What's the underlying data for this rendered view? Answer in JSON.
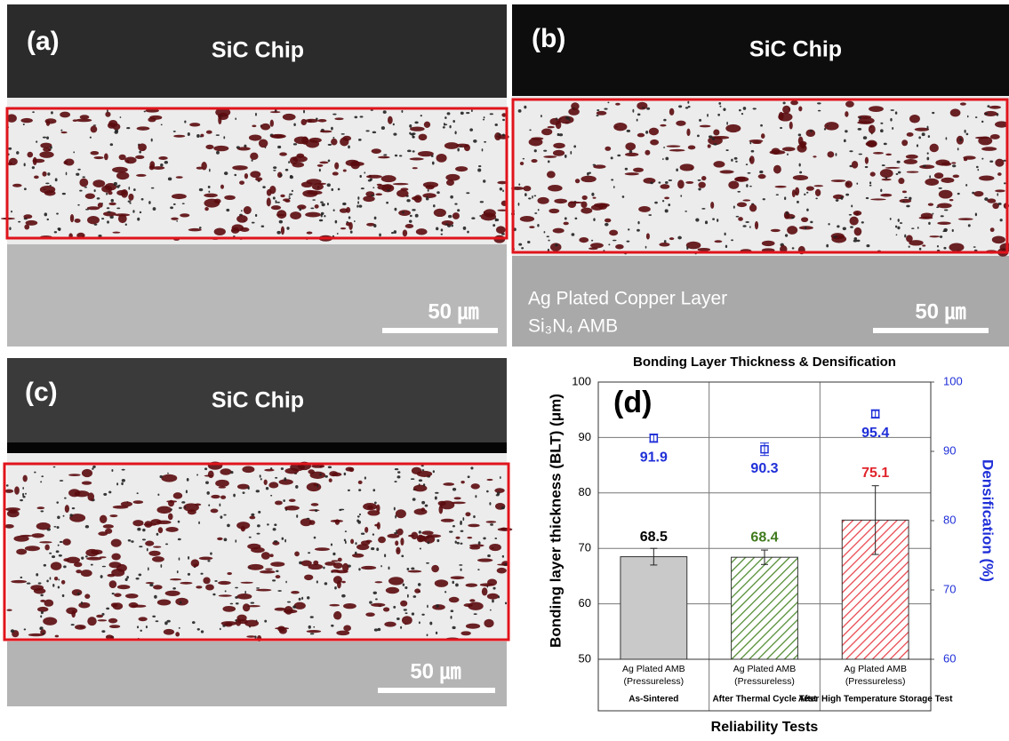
{
  "panels": [
    {
      "label": "(a)",
      "chip": "SiC Chip",
      "scale": "50 ㎛"
    },
    {
      "label": "(b)",
      "chip": "SiC Chip",
      "scale": "50 ㎛",
      "notes": [
        "Ag Plated Copper Layer",
        "Si₃N₄ AMB"
      ]
    },
    {
      "label": "(c)",
      "chip": "SiC Chip",
      "scale": "50 ㎛"
    }
  ],
  "chart_data": {
    "type": "bar",
    "title": "Bonding Layer Thickness & Densification",
    "panel_label": "(d)",
    "ylabel": "Bonding layer thickness (BLT) (μm)",
    "y2label": "Densification (%)",
    "xlabel": "Reliability Tests",
    "categories": [
      [
        "Ag Plated AMB",
        "(Pressureless)",
        "As-Sintered"
      ],
      [
        "Ag Plated AMB",
        "(Pressureless)",
        "After Thermal Cycle Test"
      ],
      [
        "Ag Plated AMB",
        "(Pressureless)",
        "After High Temperature Storage Test"
      ]
    ],
    "series": [
      {
        "values": [
          68.5,
          68.4,
          75.1
        ],
        "errors": [
          1.5,
          1.3,
          6.2
        ],
        "colors": [
          "#c9c9c9",
          "#4e8a2e",
          "#e8434a"
        ],
        "hatch": [
          false,
          true,
          true
        ],
        "label_colors": [
          "#000000",
          "#3f7a1c",
          "#e0242c"
        ]
      },
      {
        "values": [
          91.9,
          90.3,
          95.4
        ],
        "errors": [
          0.6,
          0.9,
          0.6
        ],
        "axis": "y2",
        "color": "#1f2fd8"
      }
    ],
    "ylim": [
      50,
      100
    ],
    "yticks": [
      50,
      60,
      70,
      80,
      90,
      100
    ],
    "y2lim": [
      60,
      100
    ],
    "y2ticks": [
      60,
      70,
      80,
      90,
      100
    ],
    "grid": true
  }
}
